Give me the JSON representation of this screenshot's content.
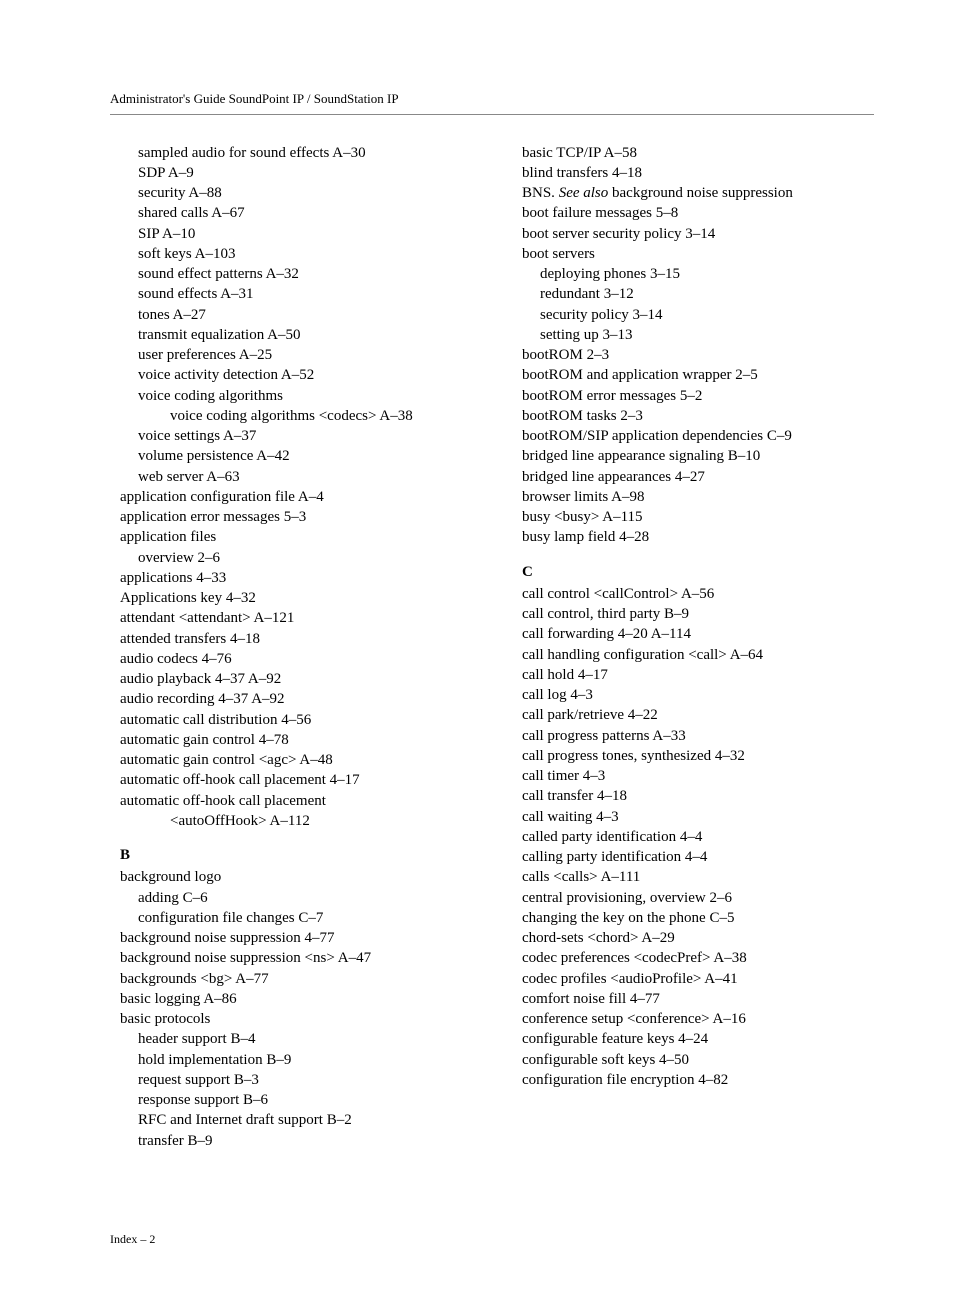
{
  "header": "Administrator's Guide SoundPoint IP / SoundStation IP",
  "footer": "Index – 2",
  "left_column": [
    {
      "level": 1,
      "text": "sampled audio for sound effects A–30"
    },
    {
      "level": 1,
      "text": "SDP A–9"
    },
    {
      "level": 1,
      "text": "security A–88"
    },
    {
      "level": 1,
      "text": "shared calls A–67"
    },
    {
      "level": 1,
      "text": "SIP A–10"
    },
    {
      "level": 1,
      "text": "soft keys A–103"
    },
    {
      "level": 1,
      "text": "sound effect patterns A–32"
    },
    {
      "level": 1,
      "text": "sound effects A–31"
    },
    {
      "level": 1,
      "text": "tones A–27"
    },
    {
      "level": 1,
      "text": "transmit equalization A–50"
    },
    {
      "level": 1,
      "text": "user preferences A–25"
    },
    {
      "level": 1,
      "text": "voice activity detection A–52"
    },
    {
      "level": 1,
      "text": "voice coding algorithms"
    },
    {
      "level": 2,
      "text": "voice coding algorithms <codecs> A–38"
    },
    {
      "level": 1,
      "text": "voice settings A–37"
    },
    {
      "level": 1,
      "text": "volume persistence A–42"
    },
    {
      "level": 1,
      "text": "web server A–63"
    },
    {
      "level": 0,
      "text": "application configuration file A–4"
    },
    {
      "level": 0,
      "text": "application error messages 5–3"
    },
    {
      "level": 0,
      "text": "application files"
    },
    {
      "level": 1,
      "text": "overview 2–6"
    },
    {
      "level": 0,
      "text": "applications 4–33"
    },
    {
      "level": 0,
      "text": "Applications key 4–32"
    },
    {
      "level": 0,
      "text": "attendant <attendant> A–121"
    },
    {
      "level": 0,
      "text": "attended transfers 4–18"
    },
    {
      "level": 0,
      "text": "audio codecs 4–76"
    },
    {
      "level": 0,
      "text": "audio playback 4–37  A–92"
    },
    {
      "level": 0,
      "text": "audio recording 4–37  A–92"
    },
    {
      "level": 0,
      "text": "automatic call distribution 4–56"
    },
    {
      "level": 0,
      "text": "automatic gain control 4–78"
    },
    {
      "level": 0,
      "text": "automatic gain control <agc> A–48"
    },
    {
      "level": 0,
      "text": "automatic off-hook call placement 4–17"
    },
    {
      "level": 0,
      "text": "automatic off-hook call placement"
    },
    {
      "level": 2,
      "text": "<autoOffHook> A–112"
    },
    {
      "section": "B"
    },
    {
      "level": 0,
      "text": "background logo"
    },
    {
      "level": 1,
      "text": "adding C–6"
    },
    {
      "level": 1,
      "text": "configuration file changes C–7"
    },
    {
      "level": 0,
      "text": "background noise suppression 4–77"
    },
    {
      "level": 0,
      "text": "background noise suppression <ns> A–47"
    },
    {
      "level": 0,
      "text": "backgrounds <bg> A–77"
    },
    {
      "level": 0,
      "text": "basic logging A–86"
    },
    {
      "level": 0,
      "text": "basic protocols"
    },
    {
      "level": 1,
      "text": "header support B–4"
    },
    {
      "level": 1,
      "text": "hold implementation B–9"
    },
    {
      "level": 1,
      "text": "request support B–3"
    },
    {
      "level": 1,
      "text": "response support B–6"
    },
    {
      "level": 1,
      "text": "RFC and Internet draft support B–2"
    },
    {
      "level": 1,
      "text": "transfer B–9"
    }
  ],
  "right_column": [
    {
      "level": 0,
      "text": "basic TCP/IP A–58"
    },
    {
      "level": 0,
      "text": "blind transfers 4–18"
    },
    {
      "level": 0,
      "text_prefix": "BNS.  ",
      "italic": "See also",
      "text_suffix": " background noise suppression"
    },
    {
      "level": 0,
      "text": "boot failure messages 5–8"
    },
    {
      "level": 0,
      "text": "boot server security policy 3–14"
    },
    {
      "level": 0,
      "text": "boot servers"
    },
    {
      "level": 1,
      "text": "deploying phones 3–15"
    },
    {
      "level": 1,
      "text": "redundant 3–12"
    },
    {
      "level": 1,
      "text": "security policy 3–14"
    },
    {
      "level": 1,
      "text": "setting up 3–13"
    },
    {
      "level": 0,
      "text": "bootROM 2–3"
    },
    {
      "level": 0,
      "text": "bootROM and application wrapper 2–5"
    },
    {
      "level": 0,
      "text": "bootROM error messages 5–2"
    },
    {
      "level": 0,
      "text": "bootROM tasks 2–3"
    },
    {
      "level": 0,
      "text": "bootROM/SIP application dependencies C–9"
    },
    {
      "level": 0,
      "text": "bridged line appearance signaling B–10"
    },
    {
      "level": 0,
      "text": "bridged line appearances 4–27"
    },
    {
      "level": 0,
      "text": "browser limits A–98"
    },
    {
      "level": 0,
      "text": "busy <busy> A–115"
    },
    {
      "level": 0,
      "text": "busy lamp field 4–28"
    },
    {
      "section": "C"
    },
    {
      "level": 0,
      "text": "call control <callControl> A–56"
    },
    {
      "level": 0,
      "text": "call control, third party B–9"
    },
    {
      "level": 0,
      "text": "call forwarding 4–20  A–114"
    },
    {
      "level": 0,
      "text": "call handling configuration <call> A–64"
    },
    {
      "level": 0,
      "text": "call hold 4–17"
    },
    {
      "level": 0,
      "text": "call log 4–3"
    },
    {
      "level": 0,
      "text": "call park/retrieve 4–22"
    },
    {
      "level": 0,
      "text": "call progress patterns A–33"
    },
    {
      "level": 0,
      "text": "call progress tones, synthesized 4–32"
    },
    {
      "level": 0,
      "text": "call timer 4–3"
    },
    {
      "level": 0,
      "text": "call transfer 4–18"
    },
    {
      "level": 0,
      "text": "call waiting 4–3"
    },
    {
      "level": 0,
      "text": "called party identification 4–4"
    },
    {
      "level": 0,
      "text": "calling party identification 4–4"
    },
    {
      "level": 0,
      "text": "calls <calls> A–111"
    },
    {
      "level": 0,
      "text": "central provisioning, overview 2–6"
    },
    {
      "level": 0,
      "text": "changing the key on the phone C–5"
    },
    {
      "level": 0,
      "text": "chord-sets <chord> A–29"
    },
    {
      "level": 0,
      "text": "codec preferences <codecPref> A–38"
    },
    {
      "level": 0,
      "text": "codec profiles <audioProfile> A–41"
    },
    {
      "level": 0,
      "text": "comfort noise fill 4–77"
    },
    {
      "level": 0,
      "text": "conference setup <conference> A–16"
    },
    {
      "level": 0,
      "text": "configurable feature keys 4–24"
    },
    {
      "level": 0,
      "text": "configurable soft keys 4–50"
    },
    {
      "level": 0,
      "text": "configuration file encryption 4–82"
    }
  ]
}
